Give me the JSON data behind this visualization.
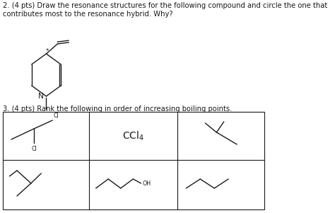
{
  "title_q2": "2. (4 pts) Draw the resonance structures for the following compound and circle the one that\ncontributes most to the resonance hybrid. Why?",
  "title_q3": "3. (4 pts) Rank the following in order of increasing boiling points.",
  "background_color": "#ffffff",
  "line_color": "#1a1a1a",
  "text_color": "#1a1a1a",
  "font_size_text": 7.2
}
